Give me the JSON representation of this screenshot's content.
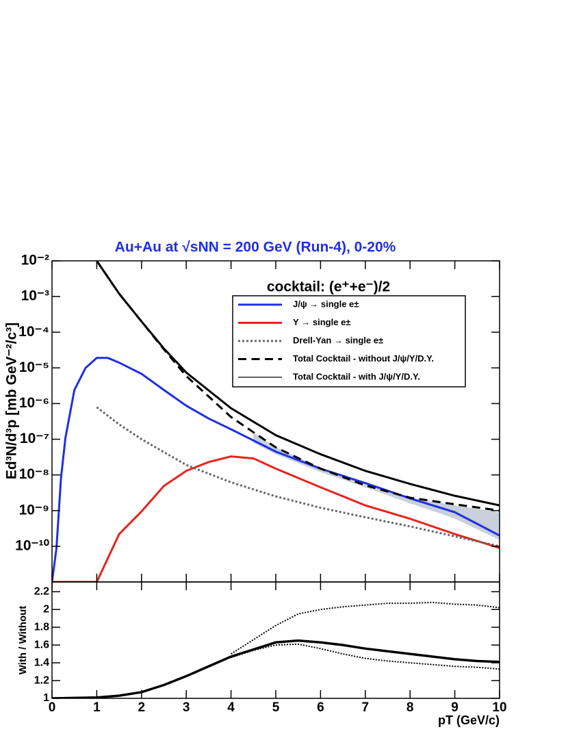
{
  "chart_data": [
    {
      "type": "line",
      "title": "Au+Au at √sNN = 200 GeV (Run-4), 0-20%",
      "ylabel": "Ed³N/d³p [mb GeV⁻²/c³]",
      "log_y": true,
      "legend": "upper right",
      "legend_title": "cocktail: (e⁺+e⁻)/2",
      "xlim": [
        0,
        10
      ],
      "xticks": [
        0,
        1,
        2,
        3,
        4,
        5,
        6,
        7,
        8,
        9,
        10
      ],
      "ylim": [
        1e-11,
        0.01
      ],
      "yticks": [
        {
          "value": 1e-10,
          "label": "10⁻¹⁰"
        },
        {
          "value": 1e-09,
          "label": "10⁻⁹"
        },
        {
          "value": 1e-08,
          "label": "10⁻⁸"
        },
        {
          "value": 1e-07,
          "label": "10⁻⁷"
        },
        {
          "value": 1e-06,
          "label": "10⁻⁶"
        },
        {
          "value": 1e-05,
          "label": "10⁻⁵"
        },
        {
          "value": 0.0001,
          "label": "10⁻⁴"
        },
        {
          "value": 0.001,
          "label": "10⁻³"
        },
        {
          "value": 0.01,
          "label": "10⁻²"
        }
      ],
      "bands": [
        {
          "color": "#9aaabb",
          "x": [
            4.5,
            5,
            6,
            7,
            8,
            9,
            10
          ],
          "lower": [
            8e-08,
            3.8e-08,
            1.2e-08,
            4.5e-09,
            1.6e-09,
            6e-10,
            1.5e-10
          ],
          "upper": [
            1.5e-07,
            6e-08,
            1.6e-08,
            5.5e-09,
            2.3e-09,
            1.4e-09,
            9e-10
          ]
        }
      ],
      "series": [
        {
          "name": "J/ψ → single e±",
          "color": "#1f2ee8",
          "style": "solid",
          "width": 3,
          "x": [
            0,
            0.1,
            0.2,
            0.3,
            0.5,
            0.75,
            1,
            1.25,
            1.5,
            2,
            2.5,
            3,
            3.5,
            4,
            5,
            6,
            7,
            8,
            9,
            10
          ],
          "values": [
            1e-11,
            9e-11,
            8e-09,
            1.1e-07,
            2.4e-06,
            1e-05,
            1.9e-05,
            1.9e-05,
            1.4e-05,
            6.8e-06,
            2.4e-06,
            8.7e-07,
            3.8e-07,
            1.9e-07,
            4.5e-08,
            1.5e-08,
            5.9e-09,
            2.2e-09,
            9e-10,
            2e-10
          ]
        },
        {
          "name": "Υ → single e±",
          "color": "#e8231c",
          "style": "solid",
          "width": 3,
          "x": [
            0,
            1,
            1.5,
            2,
            2.5,
            3,
            3.5,
            4,
            4.5,
            5,
            6,
            7,
            8,
            9,
            10
          ],
          "values": [
            1e-11,
            1e-11,
            2.2e-10,
            9.5e-10,
            4.9e-09,
            1.3e-08,
            2.3e-08,
            3.3e-08,
            2.9e-08,
            1.5e-08,
            4.5e-09,
            1.4e-09,
            5.9e-10,
            2.2e-10,
            9e-11
          ]
        },
        {
          "name": "Drell-Yan → single e±",
          "color": "#666666",
          "style": "dotted",
          "width": 3,
          "x": [
            1,
            1.5,
            2,
            3,
            4,
            5,
            6,
            7,
            8,
            9,
            10
          ],
          "values": [
            7.9e-07,
            2.6e-07,
            1e-07,
            1.9e-08,
            6.2e-09,
            2.5e-09,
            1.2e-09,
            6.5e-10,
            3.6e-10,
            1.9e-10,
            1e-10
          ]
        },
        {
          "name": "Total Cocktail - without J/ψ/Υ/D.Y.",
          "color": "#000000",
          "style": "dashed",
          "width": 3,
          "x": [
            1,
            1.5,
            2,
            2.5,
            3,
            4,
            5,
            6,
            7,
            8,
            9,
            10
          ],
          "values": [
            0.01,
            0.0012,
            0.0002,
            3.3e-05,
            5.9e-06,
            4.2e-07,
            5.9e-08,
            1.5e-08,
            5.1e-09,
            2.3e-09,
            1.5e-09,
            1e-09
          ]
        },
        {
          "name": "Total Cocktail - with J/ψ/Υ/D.Y.",
          "color": "#000000",
          "style": "solid",
          "width": 3,
          "x": [
            1,
            1.5,
            2,
            2.5,
            3,
            4,
            5,
            6,
            7,
            8,
            9,
            10
          ],
          "values": [
            0.01,
            0.0012,
            0.0002,
            3.5e-05,
            7.4e-06,
            7.4e-07,
            1.3e-07,
            3.8e-08,
            1.3e-08,
            5.6e-09,
            2.6e-09,
            1.4e-09
          ]
        }
      ]
    },
    {
      "type": "line",
      "ylabel": "With / Without",
      "xlabel": "pT (GeV/c)",
      "xlim": [
        0,
        10
      ],
      "xticks": [
        0,
        1,
        2,
        3,
        4,
        5,
        6,
        7,
        8,
        9,
        10
      ],
      "ylim": [
        1,
        2.31
      ],
      "yticks": [
        1,
        1.2,
        1.4,
        1.6,
        1.8,
        2,
        2.2
      ],
      "series": [
        {
          "color": "#000000",
          "style": "solid",
          "width": 3.5,
          "x": [
            0,
            1,
            1.5,
            2,
            2.5,
            3,
            3.5,
            4,
            4.5,
            5,
            5.5,
            6,
            6.5,
            7,
            7.5,
            8,
            8.5,
            9,
            9.5,
            10
          ],
          "values": [
            1,
            1.01,
            1.03,
            1.07,
            1.15,
            1.25,
            1.36,
            1.47,
            1.55,
            1.63,
            1.65,
            1.63,
            1.6,
            1.56,
            1.53,
            1.5,
            1.47,
            1.44,
            1.42,
            1.41
          ]
        },
        {
          "color": "#000000",
          "style": "dotted",
          "width": 2,
          "x": [
            4,
            4.5,
            5,
            5.5,
            6,
            6.5,
            7,
            7.5,
            8,
            8.5,
            9,
            9.5,
            10
          ],
          "values": [
            1.5,
            1.66,
            1.82,
            1.95,
            2,
            2.03,
            2.05,
            2.07,
            2.07,
            2.08,
            2.06,
            2.05,
            2.02
          ]
        },
        {
          "color": "#000000",
          "style": "dotted",
          "width": 2,
          "x": [
            4,
            4.5,
            5,
            5.5,
            6,
            6.5,
            7,
            7.5,
            8,
            8.5,
            9,
            9.5,
            10
          ],
          "values": [
            1.46,
            1.54,
            1.6,
            1.61,
            1.56,
            1.5,
            1.45,
            1.42,
            1.4,
            1.38,
            1.36,
            1.35,
            1.33
          ]
        }
      ]
    }
  ]
}
